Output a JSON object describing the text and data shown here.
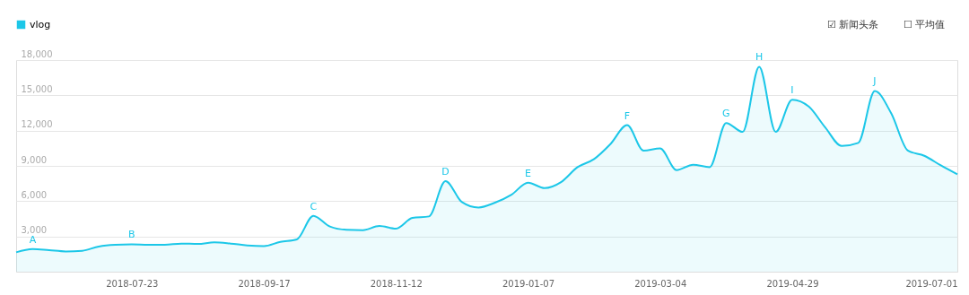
{
  "chart_data": {
    "type": "area",
    "x": [
      "2018-06-04",
      "2018-06-11",
      "2018-06-18",
      "2018-06-25",
      "2018-07-02",
      "2018-07-09",
      "2018-07-16",
      "2018-07-23",
      "2018-07-30",
      "2018-08-06",
      "2018-08-13",
      "2018-08-20",
      "2018-08-27",
      "2018-09-03",
      "2018-09-10",
      "2018-09-17",
      "2018-09-24",
      "2018-10-01",
      "2018-10-08",
      "2018-10-15",
      "2018-10-22",
      "2018-10-29",
      "2018-11-05",
      "2018-11-12",
      "2018-11-19",
      "2018-11-26",
      "2018-12-03",
      "2018-12-10",
      "2018-12-17",
      "2018-12-24",
      "2018-12-31",
      "2019-01-07",
      "2019-01-14",
      "2019-01-21",
      "2019-01-28",
      "2019-02-04",
      "2019-02-11",
      "2019-02-18",
      "2019-02-25",
      "2019-03-04",
      "2019-03-11",
      "2019-03-18",
      "2019-03-25",
      "2019-04-01",
      "2019-04-08",
      "2019-04-15",
      "2019-04-22",
      "2019-04-29",
      "2019-05-06",
      "2019-05-13",
      "2019-05-20",
      "2019-05-27",
      "2019-06-03",
      "2019-06-10",
      "2019-06-17",
      "2019-06-24",
      "2019-07-01",
      "2019-07-08"
    ],
    "series": [
      {
        "name": "vlog",
        "color": "#1cc7e8",
        "values": [
          1650,
          1930,
          1830,
          1720,
          1780,
          2140,
          2290,
          2330,
          2290,
          2290,
          2390,
          2360,
          2490,
          2390,
          2240,
          2180,
          2540,
          2750,
          4750,
          3840,
          3560,
          3530,
          3890,
          3660,
          4570,
          4700,
          7700,
          5920,
          5460,
          5870,
          6550,
          7570,
          7110,
          7620,
          8890,
          9580,
          10870,
          12470,
          10290,
          10490,
          8640,
          9100,
          8890,
          12650,
          11890,
          17430,
          11890,
          14630,
          14050,
          12270,
          10690,
          10950,
          15370,
          13460,
          10310,
          9860,
          9040,
          8280
        ]
      }
    ],
    "xlim": [
      "2018-06-04",
      "2019-07-08"
    ],
    "xticks": [
      {
        "value": "2018-07-23",
        "label": "2018-07-23"
      },
      {
        "value": "2018-09-17",
        "label": "2018-09-17"
      },
      {
        "value": "2018-11-12",
        "label": "2018-11-12"
      },
      {
        "value": "2019-01-07",
        "label": "2019-01-07"
      },
      {
        "value": "2019-03-04",
        "label": "2019-03-04"
      },
      {
        "value": "2019-04-29",
        "label": "2019-04-29"
      },
      {
        "value": "2019-07-08",
        "label": "2019-07-01"
      }
    ],
    "ylim": [
      0,
      18000
    ],
    "yticks": [
      {
        "value": 0,
        "label": null
      },
      {
        "value": 3000,
        "label": "3,000"
      },
      {
        "value": 6000,
        "label": "6,000"
      },
      {
        "value": 9000,
        "label": "9,000"
      },
      {
        "value": 12000,
        "label": "12,000"
      },
      {
        "value": 15000,
        "label": "15,000"
      },
      {
        "value": 18000,
        "label": "18,000"
      }
    ],
    "grid": "y",
    "legend": "top left",
    "annotations": [
      {
        "text": "A",
        "x": "2018-06-11",
        "y": 1930
      },
      {
        "text": "B",
        "x": "2018-07-23",
        "y": 2330
      },
      {
        "text": "C",
        "x": "2018-10-08",
        "y": 4750
      },
      {
        "text": "D",
        "x": "2018-12-03",
        "y": 7700
      },
      {
        "text": "E",
        "x": "2019-01-07",
        "y": 7570
      },
      {
        "text": "F",
        "x": "2019-02-18",
        "y": 12470
      },
      {
        "text": "G",
        "x": "2019-04-01",
        "y": 12650
      },
      {
        "text": "H",
        "x": "2019-04-15",
        "y": 17430
      },
      {
        "text": "I",
        "x": "2019-04-29",
        "y": 14630
      },
      {
        "text": "J",
        "x": "2019-06-03",
        "y": 15370
      },
      "☑ 新闻头条",
      "☐ 平均值"
    ]
  }
}
